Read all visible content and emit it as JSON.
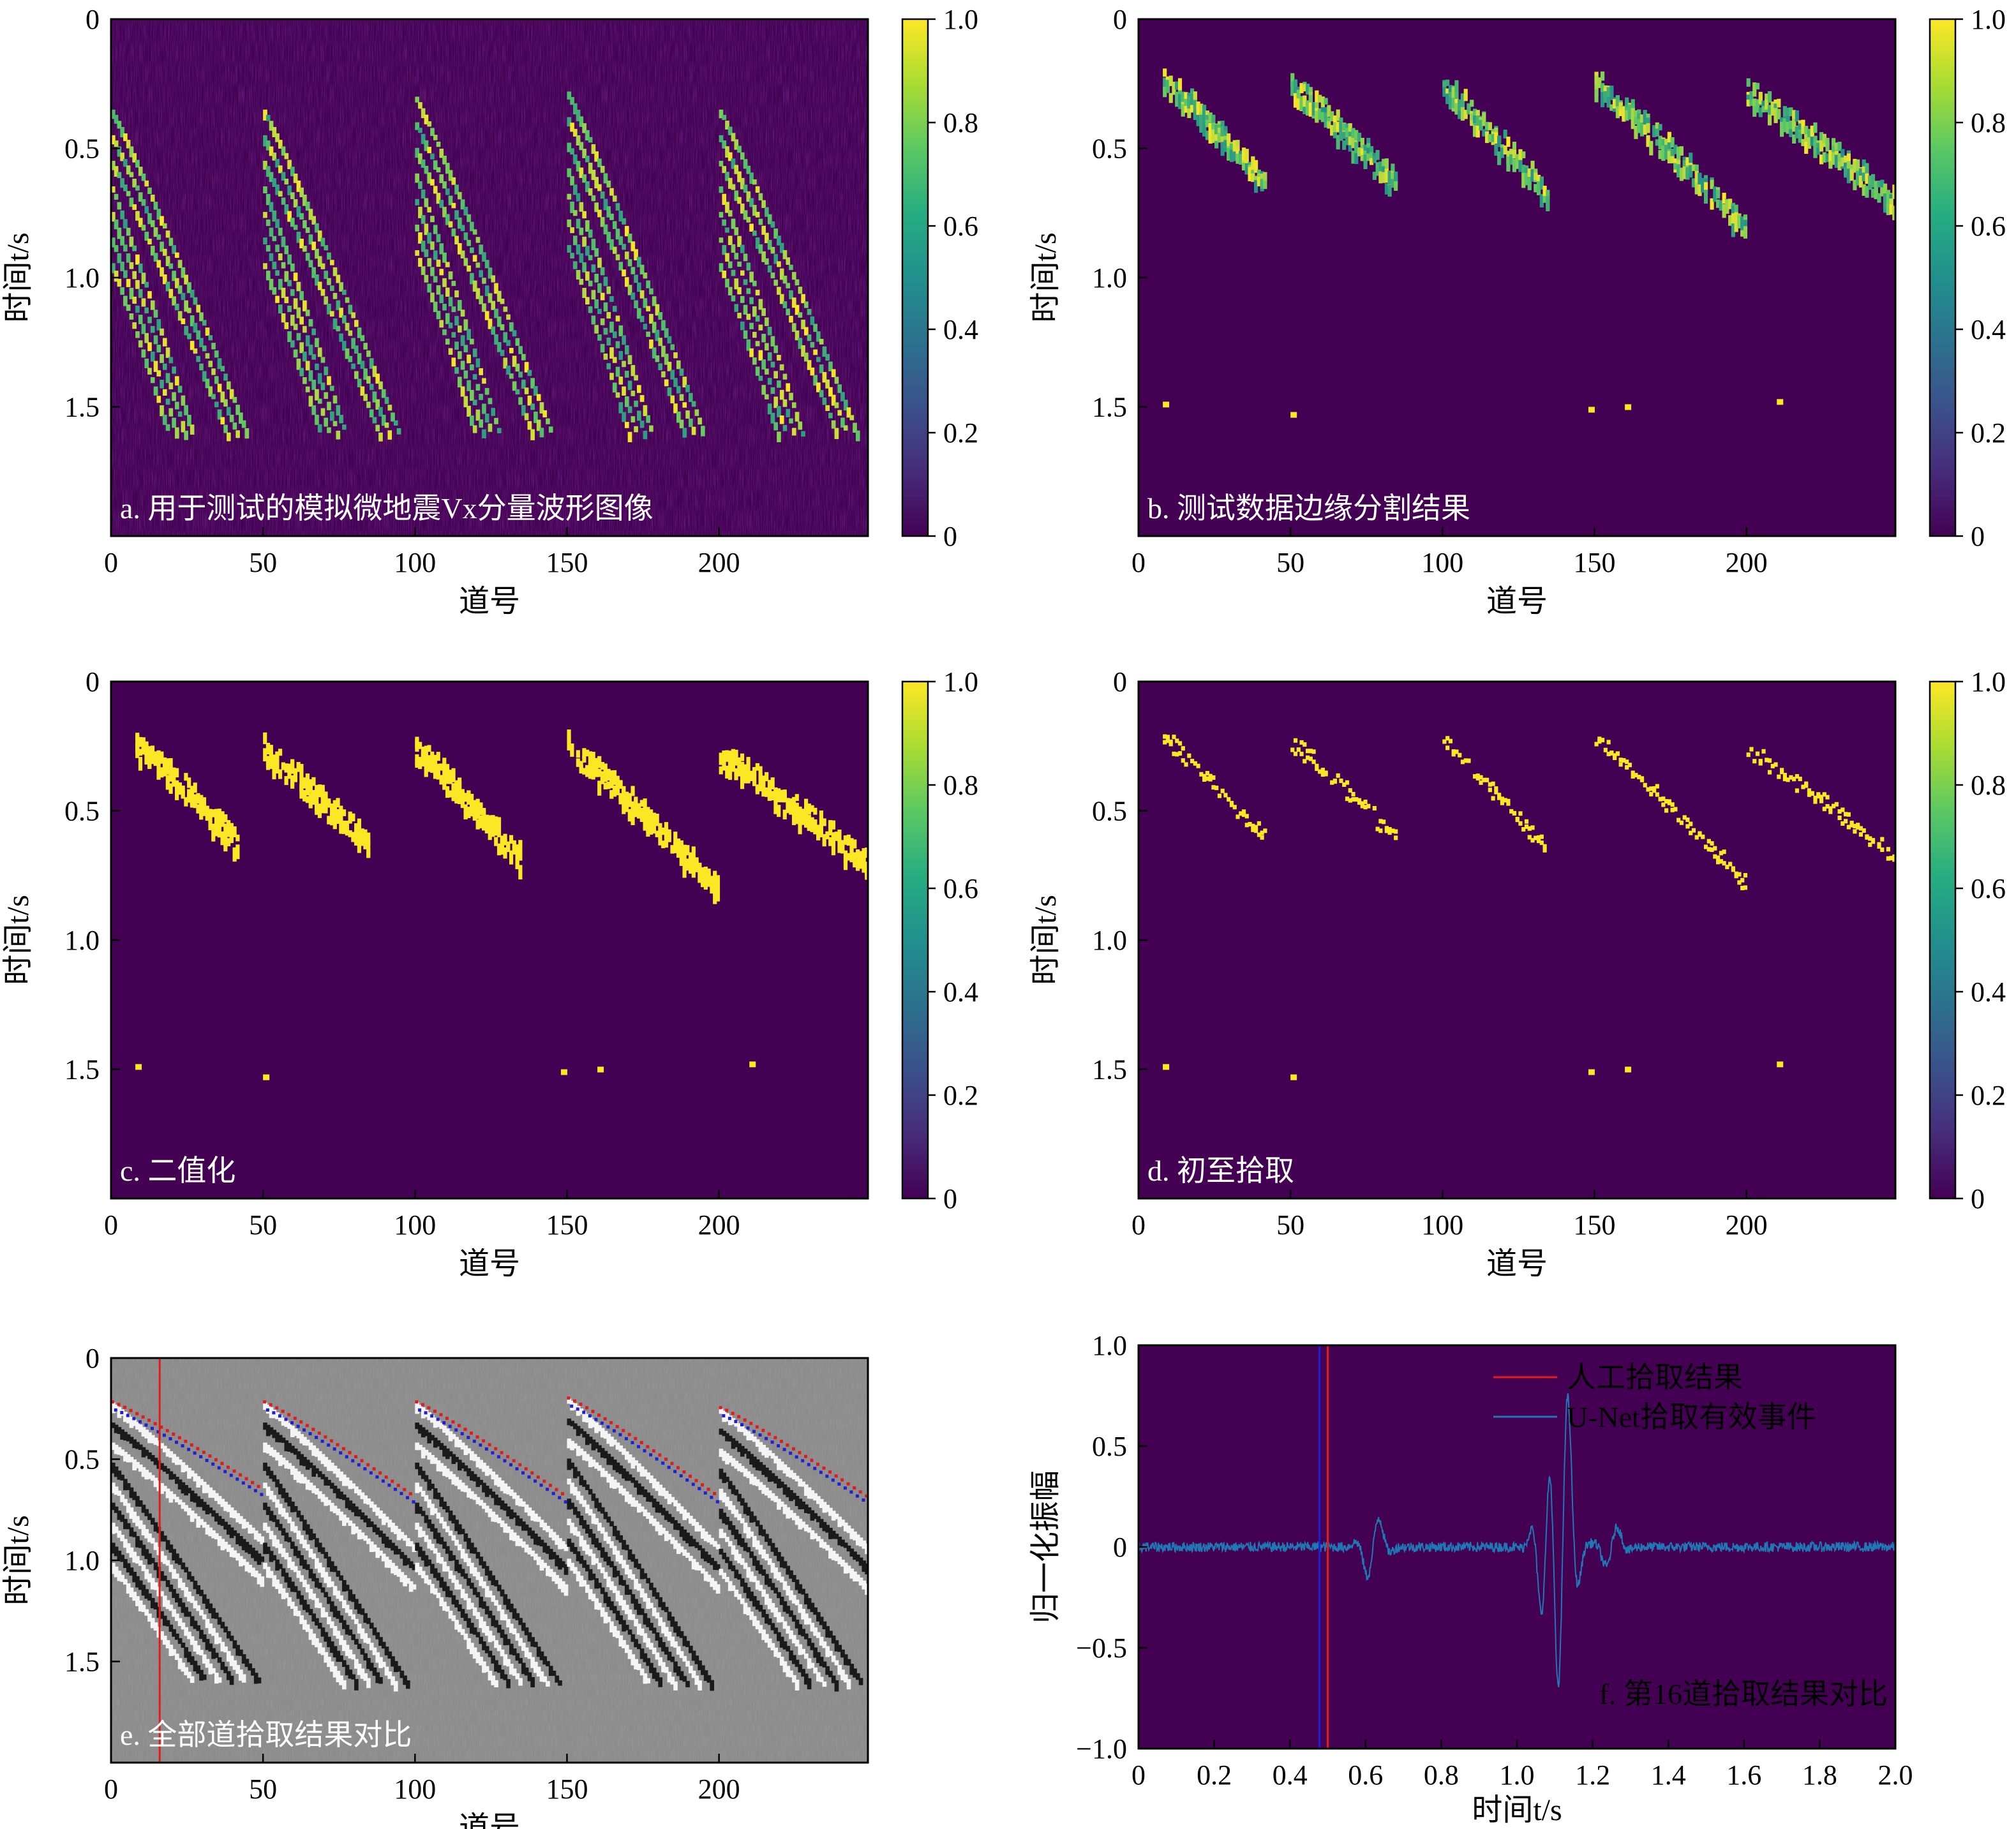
{
  "chart_data": [
    {
      "id": "a",
      "type": "heatmap",
      "caption": "a. 用于测试的模拟微地震Vx分量波形图像",
      "xlabel": "道号",
      "ylabel": "时间t/s",
      "xlim": [
        0,
        249
      ],
      "ylim": [
        0,
        2.0
      ],
      "y_inverted": true,
      "xticks": [
        "0",
        "50",
        "100",
        "150",
        "200"
      ],
      "yticks": [
        "0",
        "0.5",
        "1.0",
        "1.5"
      ],
      "colorbar": {
        "colormap": "viridis",
        "range": [
          0,
          1.0
        ],
        "ticks": [
          "0",
          "0.2",
          "0.4",
          "0.6",
          "0.8",
          "1.0"
        ]
      },
      "style": "waveform",
      "events": [
        {
          "trace_start": 0,
          "trace_end": 50,
          "t_start": 0.35,
          "t_end": 1.55
        },
        {
          "trace_start": 50,
          "trace_end": 100,
          "t_start": 0.35,
          "t_end": 1.55
        },
        {
          "trace_start": 100,
          "trace_end": 150,
          "t_start": 0.3,
          "t_end": 1.55
        },
        {
          "trace_start": 150,
          "trace_end": 200,
          "t_start": 0.28,
          "t_end": 1.55
        },
        {
          "trace_start": 200,
          "trace_end": 249,
          "t_start": 0.35,
          "t_end": 1.5
        }
      ]
    },
    {
      "id": "b",
      "type": "heatmap",
      "caption": "b. 测试数据边缘分割结果",
      "xlabel": "道号",
      "ylabel": "时间t/s",
      "xlim": [
        0,
        249
      ],
      "ylim": [
        0,
        2.0
      ],
      "y_inverted": true,
      "xticks": [
        "0",
        "50",
        "100",
        "150",
        "200"
      ],
      "yticks": [
        "0",
        "0.5",
        "1.0",
        "1.5"
      ],
      "colorbar": {
        "colormap": "viridis",
        "range": [
          0,
          1.0
        ],
        "ticks": [
          "0",
          "0.2",
          "0.4",
          "0.6",
          "0.8",
          "1.0"
        ]
      },
      "style": "segmentation",
      "events": [
        {
          "trace_start": 8,
          "trace_end": 42,
          "t_start": 0.25,
          "t_end": 0.65
        },
        {
          "trace_start": 50,
          "trace_end": 85,
          "t_start": 0.27,
          "t_end": 0.65
        },
        {
          "trace_start": 100,
          "trace_end": 135,
          "t_start": 0.27,
          "t_end": 0.7
        },
        {
          "trace_start": 150,
          "trace_end": 200,
          "t_start": 0.26,
          "t_end": 0.82
        },
        {
          "trace_start": 200,
          "trace_end": 249,
          "t_start": 0.3,
          "t_end": 0.72
        }
      ]
    },
    {
      "id": "c",
      "type": "heatmap",
      "caption": "c. 二值化",
      "xlabel": "道号",
      "ylabel": "时间t/s",
      "xlim": [
        0,
        249
      ],
      "ylim": [
        0,
        2.0
      ],
      "y_inverted": true,
      "xticks": [
        "0",
        "50",
        "100",
        "150",
        "200"
      ],
      "yticks": [
        "0",
        "0.5",
        "1.0",
        "1.5"
      ],
      "colorbar": {
        "colormap": "viridis",
        "range": [
          0,
          1.0
        ],
        "ticks": [
          "0",
          "0.2",
          "0.4",
          "0.6",
          "0.8",
          "1.0"
        ]
      },
      "style": "binary",
      "events": [
        {
          "trace_start": 8,
          "trace_end": 42,
          "t_start": 0.25,
          "t_end": 0.65
        },
        {
          "trace_start": 50,
          "trace_end": 85,
          "t_start": 0.27,
          "t_end": 0.65
        },
        {
          "trace_start": 100,
          "trace_end": 135,
          "t_start": 0.27,
          "t_end": 0.7
        },
        {
          "trace_start": 150,
          "trace_end": 200,
          "t_start": 0.26,
          "t_end": 0.82
        },
        {
          "trace_start": 200,
          "trace_end": 249,
          "t_start": 0.3,
          "t_end": 0.72
        }
      ]
    },
    {
      "id": "d",
      "type": "heatmap",
      "caption": "d. 初至拾取",
      "xlabel": "道号",
      "ylabel": "时间t/s",
      "xlim": [
        0,
        249
      ],
      "ylim": [
        0,
        2.0
      ],
      "y_inverted": true,
      "xticks": [
        "0",
        "50",
        "100",
        "150",
        "200"
      ],
      "yticks": [
        "0",
        "0.5",
        "1.0",
        "1.5"
      ],
      "colorbar": {
        "colormap": "viridis",
        "range": [
          0,
          1.0
        ],
        "ticks": [
          "0",
          "0.2",
          "0.4",
          "0.6",
          "0.8",
          "1.0"
        ]
      },
      "style": "picks",
      "events": [
        {
          "trace_start": 8,
          "trace_end": 42,
          "t_start": 0.25,
          "t_end": 0.65
        },
        {
          "trace_start": 50,
          "trace_end": 85,
          "t_start": 0.27,
          "t_end": 0.65
        },
        {
          "trace_start": 100,
          "trace_end": 135,
          "t_start": 0.27,
          "t_end": 0.7
        },
        {
          "trace_start": 150,
          "trace_end": 200,
          "t_start": 0.26,
          "t_end": 0.82
        },
        {
          "trace_start": 200,
          "trace_end": 249,
          "t_start": 0.3,
          "t_end": 0.72
        }
      ]
    },
    {
      "id": "e",
      "type": "heatmap",
      "caption": "e. 全部道拾取结果对比",
      "xlabel": "道号",
      "ylabel": "时间t/s",
      "xlim": [
        0,
        249
      ],
      "ylim": [
        0,
        2.0
      ],
      "y_inverted": true,
      "xticks": [
        "0",
        "50",
        "100",
        "150",
        "200"
      ],
      "yticks": [
        "0",
        "0.5",
        "1.0",
        "1.5"
      ],
      "style": "grayscale-with-picks",
      "marker_trace": 16,
      "manual_color": "#e31a1c",
      "unet_color": "#1f1fd6",
      "events": [
        {
          "trace_start": 0,
          "trace_end": 50,
          "t_start": 0.22,
          "t_end": 0.68
        },
        {
          "trace_start": 50,
          "trace_end": 100,
          "t_start": 0.22,
          "t_end": 0.72
        },
        {
          "trace_start": 100,
          "trace_end": 150,
          "t_start": 0.22,
          "t_end": 0.72
        },
        {
          "trace_start": 150,
          "trace_end": 200,
          "t_start": 0.2,
          "t_end": 0.72
        },
        {
          "trace_start": 200,
          "trace_end": 249,
          "t_start": 0.25,
          "t_end": 0.72
        }
      ]
    },
    {
      "id": "f",
      "type": "line",
      "caption": "f. 第16道拾取结果对比",
      "xlabel": "时间t/s",
      "ylabel": "归一化振幅",
      "xlim": [
        0,
        2.0
      ],
      "ylim": [
        -1.0,
        1.0
      ],
      "xticks": [
        "0",
        "0.2",
        "0.4",
        "0.6",
        "0.8",
        "1.0",
        "1.2",
        "1.4",
        "1.6",
        "1.8",
        "2.0"
      ],
      "yticks": [
        "1.0",
        "0.5",
        "0",
        "−0.5",
        "−1.0"
      ],
      "manual_pick_t": 0.49,
      "unet_pick_t": 0.485,
      "legend": [
        {
          "label": "人工拾取结果",
          "color": "#e31a1c"
        },
        {
          "label": "U-Net拾取有效事件",
          "color": "#1f77b4"
        }
      ],
      "wavelets": [
        {
          "t": 0.62,
          "amp": 0.18,
          "freq": 14
        },
        {
          "t": 1.08,
          "amp": 0.45,
          "freq": 16
        },
        {
          "t": 1.12,
          "amp": 0.92,
          "freq": 16
        },
        {
          "t": 1.25,
          "amp": 0.12,
          "freq": 14
        }
      ],
      "noise_amp": 0.025
    }
  ]
}
